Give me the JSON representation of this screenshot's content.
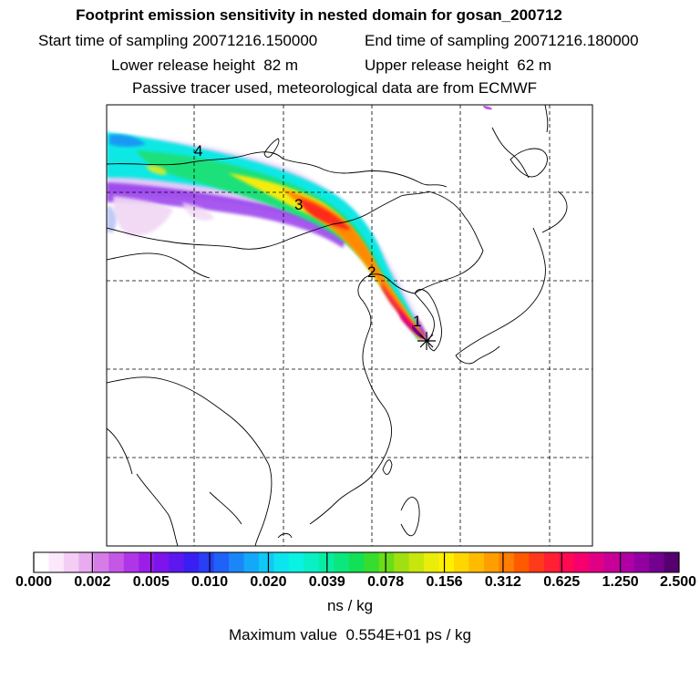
{
  "header": {
    "title": "Footprint emission sensitivity in nested domain for gosan_200712",
    "start_label": "Start time of sampling",
    "start_value": "20071216.150000",
    "end_label": "End time of sampling",
    "end_value": "20071216.180000",
    "lower_label": "Lower release height",
    "lower_value": "82 m",
    "upper_label": "Upper release height",
    "upper_value": "62 m",
    "tracer_note": "Passive tracer used, meteorological data are from ECMWF"
  },
  "map": {
    "trajectory_markers": [
      "1",
      "2",
      "3",
      "4"
    ],
    "release_site_icon": "asterisk-icon"
  },
  "colorbar": {
    "units": "ns / kg",
    "tick_labels": [
      "0.000",
      "0.002",
      "0.005",
      "0.010",
      "0.020",
      "0.039",
      "0.078",
      "0.156",
      "0.312",
      "0.625",
      "1.250",
      "2.500"
    ],
    "colors": [
      "#ffffff",
      "#fbe8fb",
      "#f3cdf3",
      "#e9aaf0",
      "#d67ce8",
      "#c457e6",
      "#b035e8",
      "#9a1ee8",
      "#7d14ec",
      "#5d18ef",
      "#3a1ff2",
      "#2a3ef5",
      "#2062f7",
      "#1a86f8",
      "#14a8f8",
      "#10c8f5",
      "#0ce4f0",
      "#09f2e2",
      "#08f0c4",
      "#08eda2",
      "#0ae77c",
      "#12e055",
      "#36dc2e",
      "#6adc18",
      "#9ee010",
      "#c8e60c",
      "#eaec0a",
      "#fff000",
      "#ffd600",
      "#ffbb00",
      "#ff9e00",
      "#ff7d00",
      "#ff5a00",
      "#ff3a1a",
      "#ff2033",
      "#ff0a52",
      "#f5006e",
      "#e00086",
      "#c80098",
      "#b000a5",
      "#9200a2",
      "#74008f",
      "#560070"
    ],
    "max_label": "Maximum value",
    "max_value": "0.554E+01 ps / kg"
  }
}
